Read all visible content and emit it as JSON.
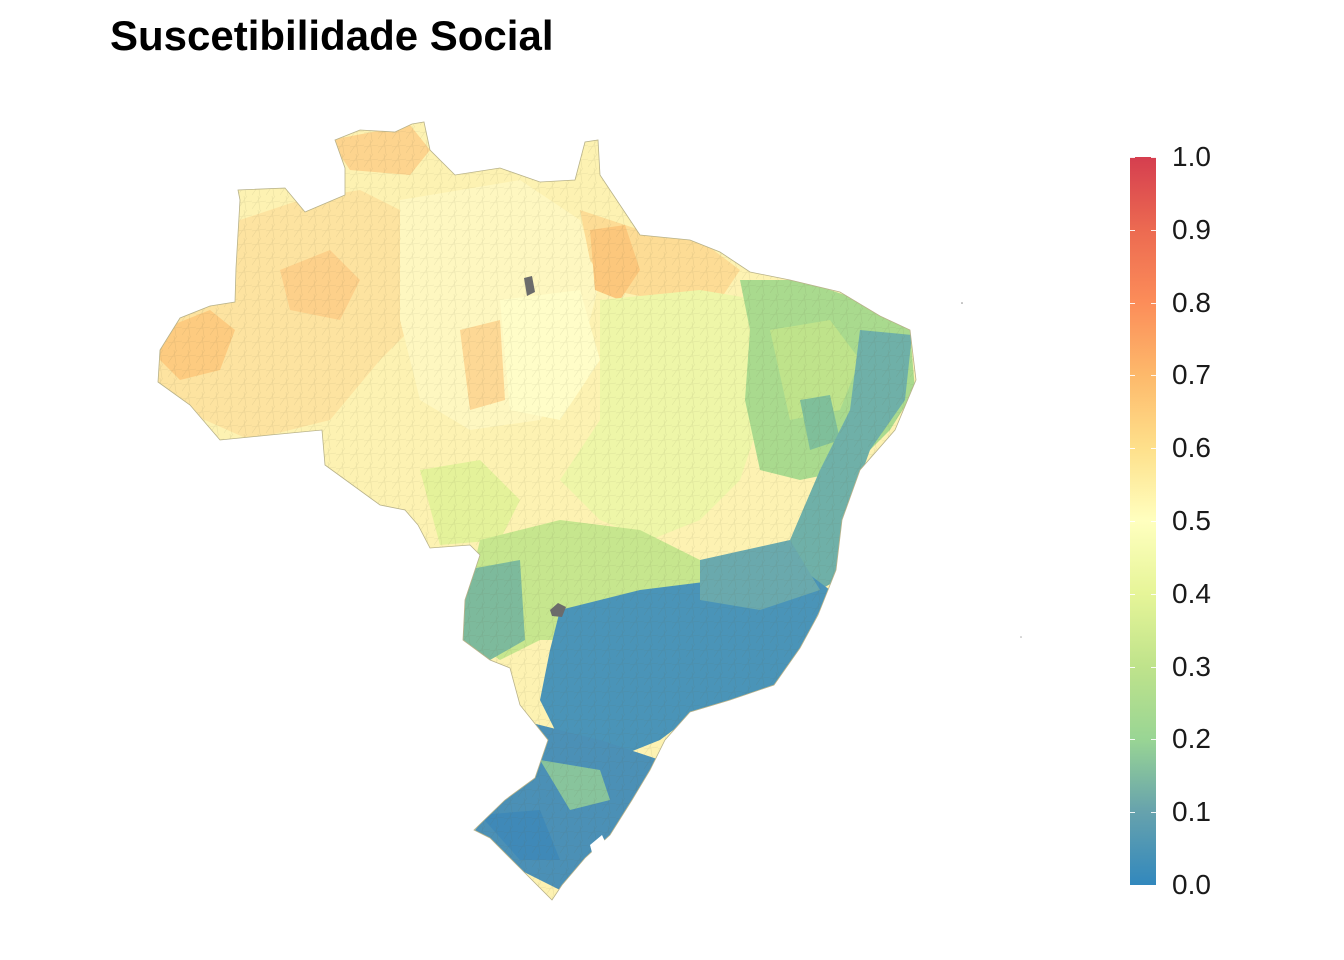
{
  "title": "Suscetibilidade Social",
  "legend": {
    "min": 0.0,
    "max": 1.0,
    "labels": [
      "0.0",
      "0.1",
      "0.2",
      "0.3",
      "0.4",
      "0.5",
      "0.6",
      "0.7",
      "0.8",
      "0.9",
      "1.0"
    ],
    "palette": [
      "#3288bd",
      "#99d594",
      "#e6f598",
      "#ffffbf",
      "#fee08b",
      "#fc8d59",
      "#d53e4f"
    ],
    "missing_color": "#6b6b6b"
  }
}
